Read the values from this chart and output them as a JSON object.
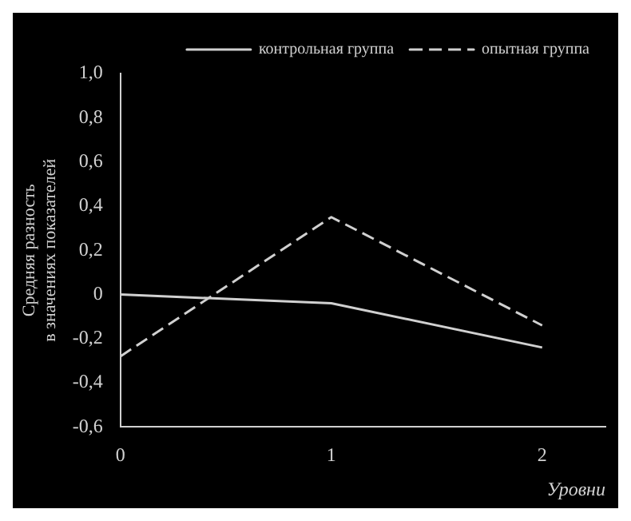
{
  "chart_data": {
    "type": "line",
    "ylabel": "Средняя разность\nв значениях показателей",
    "xlabel": "Уровни",
    "x": [
      0,
      1,
      2
    ],
    "xlim": [
      0,
      2.3
    ],
    "xticks": [
      0,
      1,
      2
    ],
    "ylim": [
      -0.6,
      1.0
    ],
    "yticks": [
      {
        "value": -0.6,
        "label": "-0,6"
      },
      {
        "value": -0.4,
        "label": "-0,4"
      },
      {
        "value": -0.2,
        "label": "-0,2"
      },
      0,
      {
        "value": 0.2,
        "label": "0,2"
      },
      {
        "value": 0.4,
        "label": "0,4"
      },
      {
        "value": 0.6,
        "label": "0,6"
      },
      {
        "value": 0.8,
        "label": "0,8"
      },
      {
        "value": 1.0,
        "label": "1,0"
      }
    ],
    "series": [
      {
        "name": "контрольная группа",
        "color": "#d0d0d0",
        "line_style": "solid",
        "values": [
          0,
          -0.04,
          -0.24
        ]
      },
      {
        "name": "опытная группа",
        "color": "#d0d0d0",
        "line_style": "dashed",
        "values": [
          -0.28,
          0.35,
          -0.14
        ]
      }
    ],
    "grid": false,
    "legend": "top right",
    "marker": "none"
  }
}
